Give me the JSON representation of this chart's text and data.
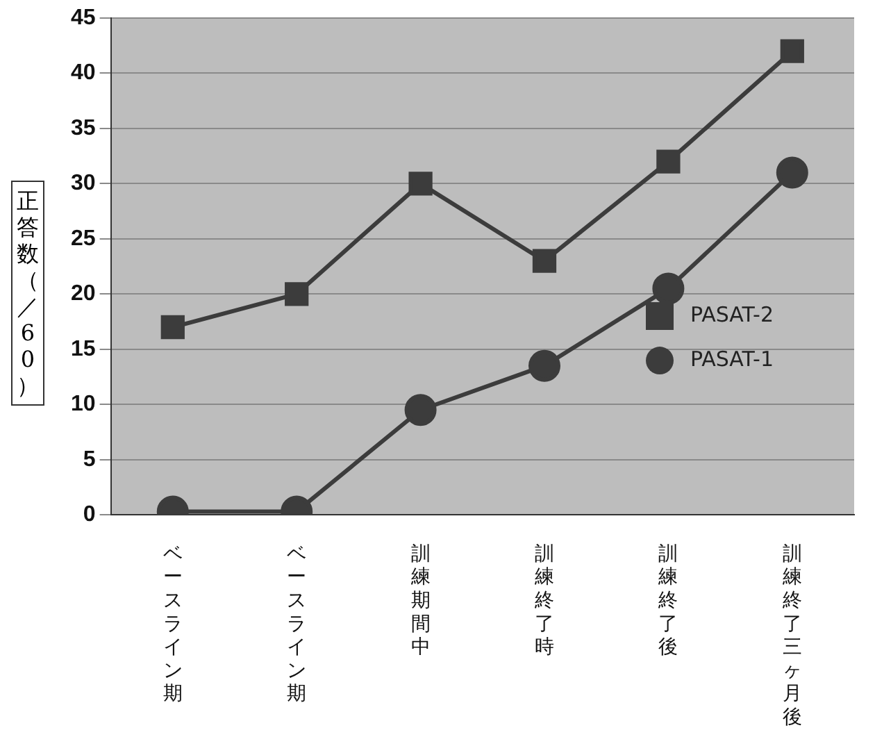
{
  "chart_data": {
    "type": "line",
    "ylabel": "正答数（／60）",
    "categories": [
      "ベースライン期",
      "ベースライン期",
      "訓練期間中",
      "訓練終了時",
      "訓練終了後",
      "訓練終了三ヶ月後"
    ],
    "series": [
      {
        "name": "PASAT-2",
        "color": "#3c3c3c",
        "marker": "square",
        "values": [
          17,
          20,
          30,
          23,
          32,
          42
        ]
      },
      {
        "name": "PASAT-1",
        "color": "#3c3c3c",
        "marker": "circle",
        "values": [
          0.3,
          0.3,
          9.5,
          13.5,
          20.5,
          31
        ]
      }
    ],
    "ylim": [
      0,
      45
    ],
    "yticks": [
      0,
      5,
      10,
      15,
      20,
      25,
      30,
      35,
      40,
      45
    ],
    "grid": "y",
    "legend": "right",
    "line_style": "solid"
  }
}
